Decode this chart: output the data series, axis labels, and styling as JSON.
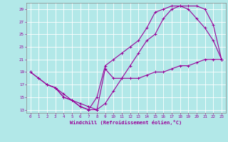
{
  "xlabel": "Windchill (Refroidissement éolien,°C)",
  "bg_color": "#b2e8e8",
  "line_color": "#990099",
  "grid_color": "#ffffff",
  "spine_color": "#888888",
  "xlim": [
    -0.5,
    23.5
  ],
  "ylim": [
    12.5,
    30
  ],
  "yticks": [
    13,
    15,
    17,
    19,
    21,
    23,
    25,
    27,
    29
  ],
  "xticks": [
    0,
    1,
    2,
    3,
    4,
    5,
    6,
    7,
    8,
    9,
    10,
    11,
    12,
    13,
    14,
    15,
    16,
    17,
    18,
    19,
    20,
    21,
    22,
    23
  ],
  "line1_x": [
    0,
    1,
    2,
    3,
    4,
    5,
    6,
    7,
    8,
    9,
    10,
    11,
    12,
    13,
    14,
    15,
    16,
    17,
    18,
    19,
    20,
    21,
    22,
    23
  ],
  "line1_y": [
    19,
    18,
    17,
    16.5,
    15,
    14.5,
    13.5,
    13,
    13,
    19.5,
    18,
    18,
    18,
    18,
    18.5,
    19,
    19,
    19.5,
    20,
    20,
    20.5,
    21,
    21,
    21
  ],
  "line2_x": [
    0,
    1,
    2,
    3,
    4,
    5,
    6,
    7,
    8,
    9,
    10,
    11,
    12,
    13,
    14,
    15,
    16,
    17,
    18,
    19,
    20,
    21,
    22,
    23
  ],
  "line2_y": [
    19,
    18,
    17,
    16.5,
    15,
    14.5,
    13.5,
    13,
    15,
    20,
    21,
    22,
    23,
    24,
    26,
    28.5,
    29,
    29.5,
    29.5,
    29,
    27.5,
    26,
    24,
    21
  ],
  "line3_x": [
    2,
    3,
    4,
    5,
    6,
    7,
    8,
    9,
    10,
    11,
    12,
    13,
    14,
    15,
    16,
    17,
    18,
    19,
    20,
    21,
    22,
    23
  ],
  "line3_y": [
    17,
    16.5,
    15.5,
    14.5,
    14,
    13.5,
    13,
    14,
    16,
    18,
    20,
    22,
    24,
    25,
    27.5,
    29,
    29.5,
    29.5,
    29.5,
    29,
    26.5,
    21
  ]
}
